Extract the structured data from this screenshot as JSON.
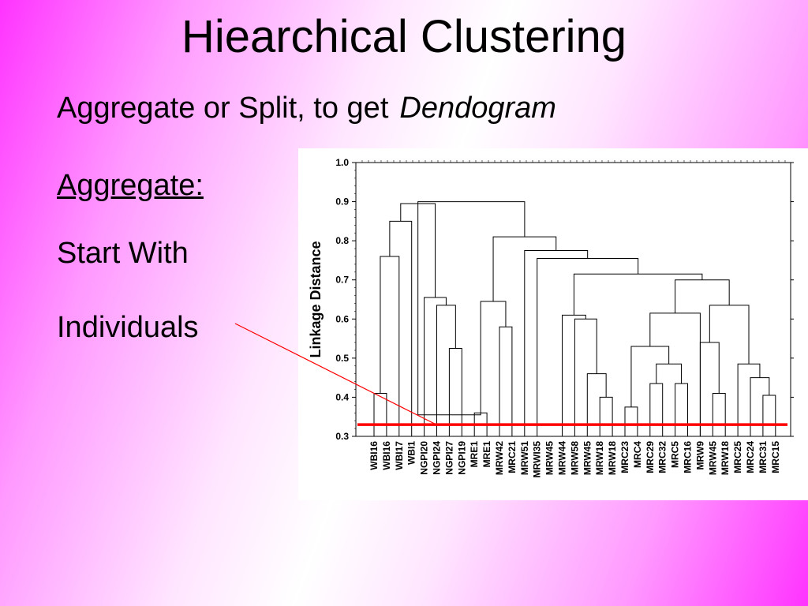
{
  "slide": {
    "title": "Hiearchical Clustering",
    "subtitle_plain": "Aggregate or Split, to get",
    "subtitle_emphasis": "Dendogram",
    "bullets": [
      "Aggregate:",
      "Start With",
      "Individuals"
    ]
  },
  "colors": {
    "background_edge": "#ff33ff",
    "background_center": "#ffffff",
    "annotation": "#ff0000",
    "threshold": "#ff0000",
    "tree": "#000000"
  },
  "chart_data": {
    "type": "dendrogram",
    "ylabel": "Linkage Distance",
    "ylim": [
      0.3,
      1.0
    ],
    "yticks": [
      "0.3",
      "0.4",
      "0.5",
      "0.6",
      "0.7",
      "0.8",
      "0.9",
      "1.0"
    ],
    "grid": false,
    "leaves": [
      "WBI16",
      "WBI16",
      "WBI17",
      "WBI1",
      "NGPI20",
      "NGPI24",
      "NGPI27",
      "NGPI19",
      "MRE1",
      "MRE1",
      "MRW42",
      "MRC21",
      "MRW51",
      "MRWI35",
      "MRW45",
      "MRW44",
      "MRW58",
      "MRW45",
      "MRW18",
      "MRW18",
      "MRC23",
      "MRC4",
      "MRC29",
      "MRC32",
      "MRC5",
      "MRC16",
      "MRW9",
      "MRW45",
      "MRW18",
      "MRC25",
      "MRC24",
      "MRC31",
      "MRC15"
    ],
    "threshold": 0.33,
    "merges": [
      {
        "a": {
          "leaf": 0
        },
        "b": {
          "leaf": 1
        },
        "h": 0.41
      },
      {
        "a": {
          "leaf": 8
        },
        "b": {
          "leaf": 9
        },
        "h": 0.36
      },
      {
        "a": {
          "leaf": 18
        },
        "b": {
          "leaf": 19
        },
        "h": 0.4
      },
      {
        "a": {
          "leaf": 20
        },
        "b": {
          "leaf": 21
        },
        "h": 0.375
      },
      {
        "a": {
          "leaf": 24
        },
        "b": {
          "leaf": 25
        },
        "h": 0.435
      },
      {
        "a": {
          "leaf": 27
        },
        "b": {
          "leaf": 28
        },
        "h": 0.41
      },
      {
        "a": {
          "leaf": 31
        },
        "b": {
          "leaf": 32
        },
        "h": 0.405
      },
      {
        "a": {
          "leaf": 6
        },
        "b": {
          "leaf": 7
        },
        "h": 0.525
      },
      {
        "a": {
          "leaf": 5
        },
        "b": {
          "merge": 7
        },
        "h": 0.635
      },
      {
        "a": {
          "leaf": 4
        },
        "b": {
          "merge": 8
        },
        "h": 0.655
      },
      {
        "a": {
          "merge": 0
        },
        "b": {
          "leaf": 2
        },
        "h": 0.76
      },
      {
        "a": {
          "merge": 10
        },
        "b": {
          "leaf": 3
        },
        "h": 0.85
      },
      {
        "a": {
          "merge": 11
        },
        "b": {
          "merge": 9
        },
        "h": 0.895
      },
      {
        "a": {
          "merge": 1
        },
        "b": {
          "merge": 12
        },
        "h": 0.355
      },
      {
        "a": {
          "leaf": 10
        },
        "b": {
          "leaf": 11
        },
        "h": 0.58
      },
      {
        "a": {
          "merge": 1
        },
        "b": {
          "merge": 14
        },
        "h": 0.645
      },
      {
        "a": {
          "leaf": 17
        },
        "b": {
          "merge": 2
        },
        "h": 0.46
      },
      {
        "a": {
          "leaf": 16
        },
        "b": {
          "merge": 16
        },
        "h": 0.6
      },
      {
        "a": {
          "leaf": 15
        },
        "b": {
          "merge": 17
        },
        "h": 0.61
      },
      {
        "a": {
          "leaf": 22
        },
        "b": {
          "leaf": 23
        },
        "h": 0.435
      },
      {
        "a": {
          "merge": 19
        },
        "b": {
          "merge": 4
        },
        "h": 0.485
      },
      {
        "a": {
          "merge": 3
        },
        "b": {
          "merge": 20
        },
        "h": 0.53
      },
      {
        "a": {
          "merge": 21
        },
        "b": {
          "leaf": 26
        },
        "h": 0.615
      },
      {
        "a": {
          "merge": 5
        },
        "b": {
          "leaf": 26
        },
        "h": 0.54
      },
      {
        "a": {
          "leaf": 30
        },
        "b": {
          "merge": 6
        },
        "h": 0.45
      },
      {
        "a": {
          "leaf": 29
        },
        "b": {
          "merge": 24
        },
        "h": 0.485
      },
      {
        "a": {
          "merge": 23
        },
        "b": {
          "merge": 25
        },
        "h": 0.635
      },
      {
        "a": {
          "merge": 22
        },
        "b": {
          "merge": 26
        },
        "h": 0.7
      },
      {
        "a": {
          "merge": 18
        },
        "b": {
          "merge": 27
        },
        "h": 0.715
      },
      {
        "a": {
          "leaf": 13
        },
        "b": {
          "merge": 28
        },
        "h": 0.755
      },
      {
        "a": {
          "leaf": 12
        },
        "b": {
          "merge": 29
        },
        "h": 0.775
      },
      {
        "a": {
          "merge": 15
        },
        "b": {
          "merge": 30
        },
        "h": 0.81
      },
      {
        "a": {
          "merge": 12
        },
        "b": {
          "merge": 31
        },
        "h": 0.9
      }
    ]
  }
}
